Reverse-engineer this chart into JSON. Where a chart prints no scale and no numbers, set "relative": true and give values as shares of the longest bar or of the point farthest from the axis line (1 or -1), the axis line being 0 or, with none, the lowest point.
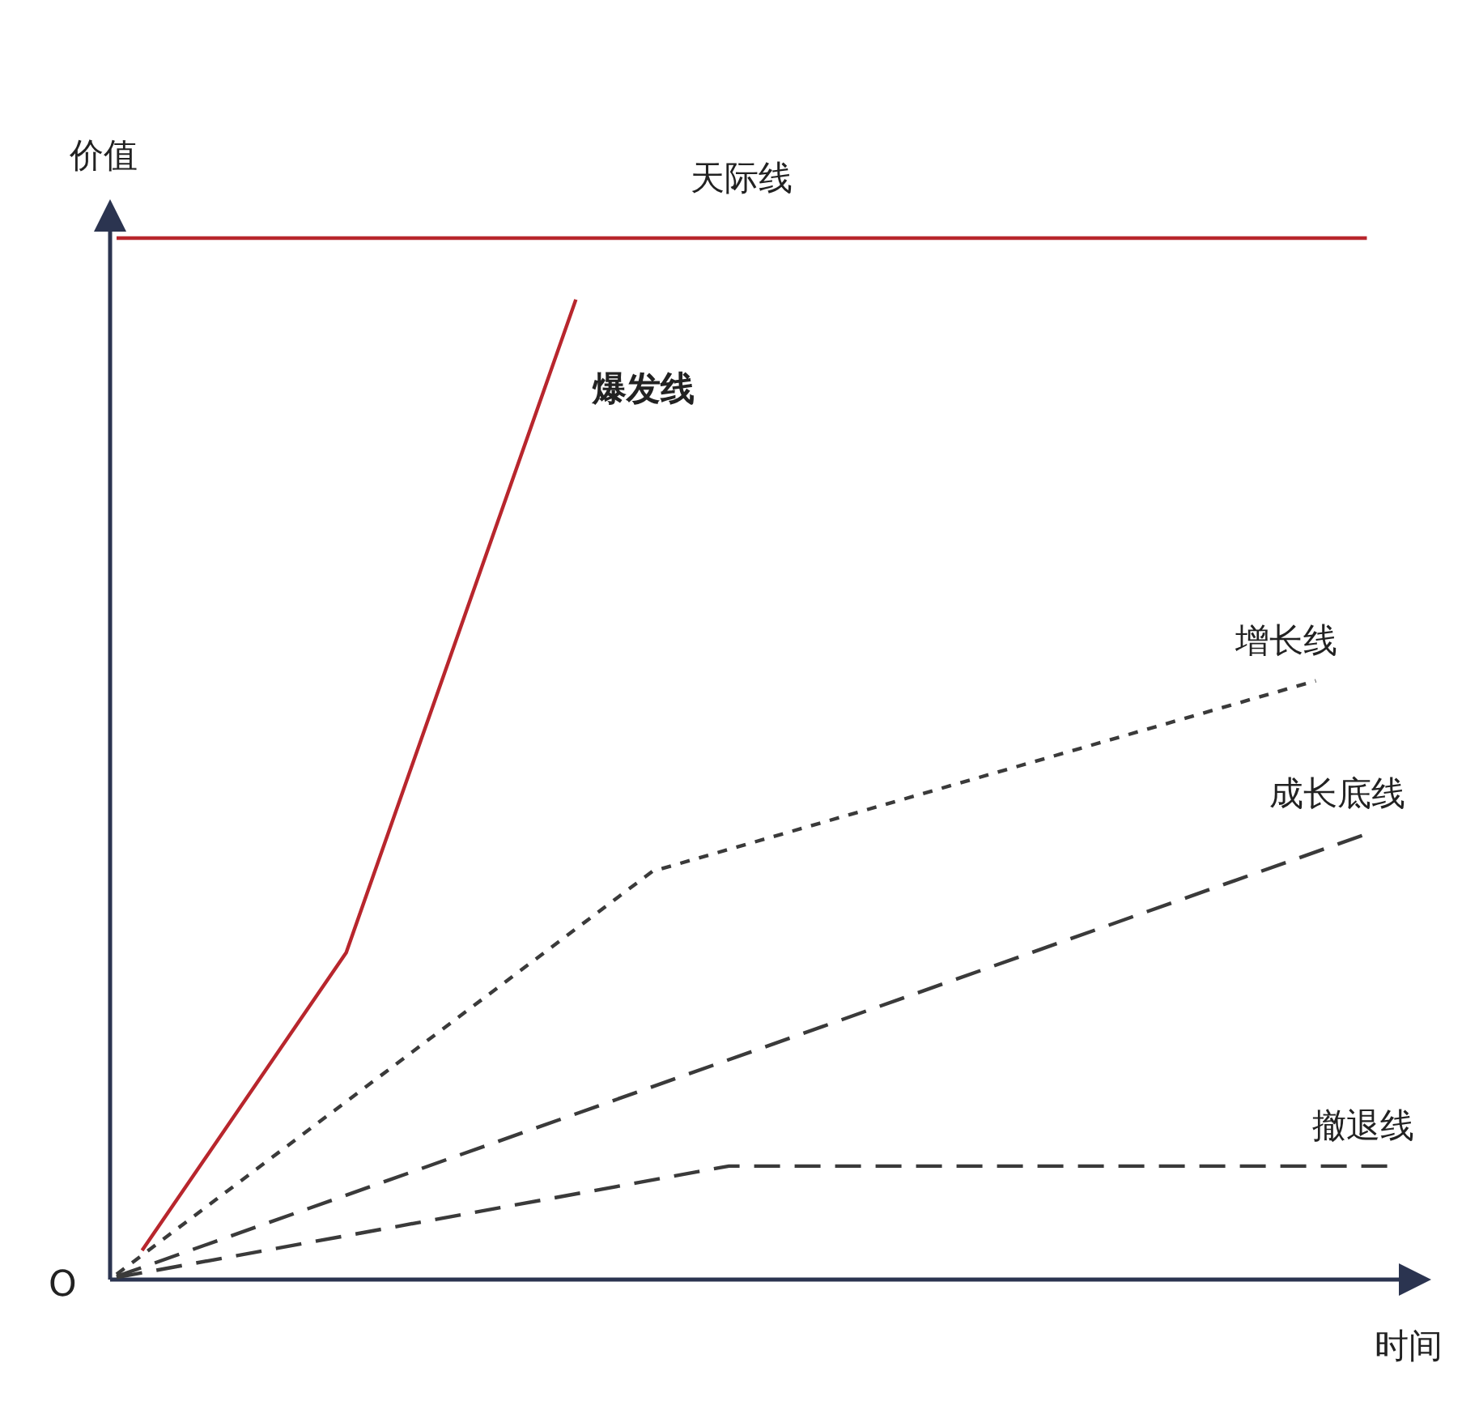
{
  "chart_data": {
    "type": "line",
    "relative": true,
    "xlabel": "时间",
    "ylabel": "价值",
    "tick_labels": false,
    "marker": "none",
    "annotations": [
      "O"
    ],
    "categories": [
      null,
      null,
      null,
      null,
      null,
      null,
      null,
      null,
      null,
      null,
      null,
      null,
      null,
      null,
      null,
      null,
      null,
      null,
      null,
      null,
      null,
      null,
      null,
      null,
      null,
      null,
      null,
      null,
      null,
      null,
      null,
      null,
      null,
      null,
      null,
      null,
      null,
      null,
      null,
      null,
      null,
      null,
      null,
      null,
      null,
      null,
      null,
      null,
      null,
      null,
      null
    ],
    "series": [
      {
        "name": "天际线",
        "color": "#b8262d",
        "line_style": "solid",
        "values": [
          1,
          null,
          null,
          null,
          null,
          null,
          null,
          null,
          null,
          null,
          null,
          null,
          null,
          null,
          null,
          null,
          null,
          null,
          null,
          null,
          null,
          null,
          null,
          null,
          null,
          null,
          null,
          null,
          null,
          null,
          null,
          null,
          null,
          null,
          null,
          null,
          null,
          null,
          null,
          null,
          null,
          null,
          null,
          null,
          null,
          null,
          null,
          null,
          null,
          1,
          null
        ]
      },
      {
        "name": "爆发线",
        "color": "#b8262d",
        "line_style": "solid",
        "values": [
          null,
          0.028,
          null,
          null,
          null,
          null,
          null,
          null,
          null,
          0.314,
          null,
          null,
          null,
          null,
          null,
          null,
          null,
          null,
          0.941,
          null,
          null,
          null,
          null,
          null,
          null,
          null,
          null,
          null,
          null,
          null,
          null,
          null,
          null,
          null,
          null,
          null,
          null,
          null,
          null,
          null,
          null,
          null,
          null,
          null,
          null,
          null,
          null,
          null,
          null,
          null,
          null
        ]
      },
      {
        "name": "增长线",
        "color": "#3a3a3a",
        "line_style": "dotted",
        "values": [
          0.005,
          null,
          null,
          null,
          null,
          null,
          null,
          null,
          null,
          null,
          null,
          null,
          null,
          null,
          null,
          null,
          null,
          null,
          null,
          null,
          null,
          0.392,
          null,
          null,
          null,
          null,
          null,
          null,
          null,
          null,
          null,
          null,
          null,
          null,
          null,
          null,
          null,
          null,
          null,
          null,
          null,
          null,
          null,
          null,
          null,
          null,
          null,
          0.575,
          null,
          null,
          null
        ]
      },
      {
        "name": "成长底线",
        "color": "#3a3a3a",
        "line_style": "dashed",
        "values": [
          0.003,
          null,
          null,
          null,
          null,
          null,
          null,
          null,
          null,
          null,
          null,
          null,
          null,
          null,
          null,
          null,
          null,
          null,
          null,
          null,
          null,
          null,
          null,
          null,
          null,
          null,
          null,
          null,
          null,
          null,
          null,
          null,
          null,
          null,
          null,
          null,
          null,
          null,
          null,
          null,
          null,
          null,
          null,
          null,
          null,
          null,
          null,
          null,
          null,
          0.428,
          null
        ]
      },
      {
        "name": "撤退线",
        "color": "#3a3a3a",
        "line_style": "dashed",
        "values": [
          0.002,
          null,
          null,
          null,
          null,
          null,
          null,
          null,
          null,
          null,
          null,
          null,
          null,
          null,
          null,
          null,
          null,
          null,
          null,
          null,
          null,
          null,
          null,
          null,
          0.109,
          null,
          null,
          null,
          null,
          null,
          null,
          null,
          null,
          null,
          null,
          null,
          null,
          null,
          null,
          null,
          null,
          null,
          null,
          null,
          null,
          null,
          null,
          null,
          null,
          null,
          0.109
        ]
      }
    ]
  }
}
